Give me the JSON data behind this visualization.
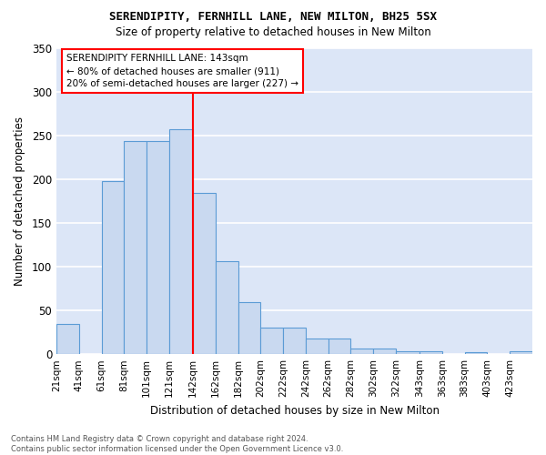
{
  "title1": "SERENDIPITY, FERNHILL LANE, NEW MILTON, BH25 5SX",
  "title2": "Size of property relative to detached houses in New Milton",
  "xlabel": "Distribution of detached houses by size in New Milton",
  "ylabel": "Number of detached properties",
  "footer1": "Contains HM Land Registry data © Crown copyright and database right 2024.",
  "footer2": "Contains public sector information licensed under the Open Government Licence v3.0.",
  "bin_labels": [
    "21sqm",
    "41sqm",
    "61sqm",
    "81sqm",
    "101sqm",
    "121sqm",
    "142sqm",
    "162sqm",
    "182sqm",
    "202sqm",
    "222sqm",
    "242sqm",
    "262sqm",
    "282sqm",
    "302sqm",
    "322sqm",
    "343sqm",
    "363sqm",
    "383sqm",
    "403sqm",
    "423sqm"
  ],
  "bar_values": [
    35,
    0,
    198,
    243,
    243,
    257,
    184,
    106,
    59,
    30,
    30,
    18,
    18,
    6,
    6,
    3,
    3,
    0,
    2,
    0,
    3
  ],
  "bar_color": "#c9d9f0",
  "bar_edge_color": "#5b9bd5",
  "vline_x": 142,
  "vline_color": "red",
  "annotation_text": "SERENDIPITY FERNHILL LANE: 143sqm\n← 80% of detached houses are smaller (911)\n20% of semi-detached houses are larger (227) →",
  "annotation_box_color": "white",
  "annotation_box_edge": "red",
  "ylim": [
    0,
    350
  ],
  "yticks": [
    0,
    50,
    100,
    150,
    200,
    250,
    300,
    350
  ],
  "background_color": "#dce6f7",
  "grid_color": "white",
  "bin_starts": [
    21,
    41,
    61,
    81,
    101,
    121,
    142,
    162,
    182,
    202,
    222,
    242,
    262,
    282,
    302,
    322,
    343,
    363,
    383,
    403,
    423
  ]
}
